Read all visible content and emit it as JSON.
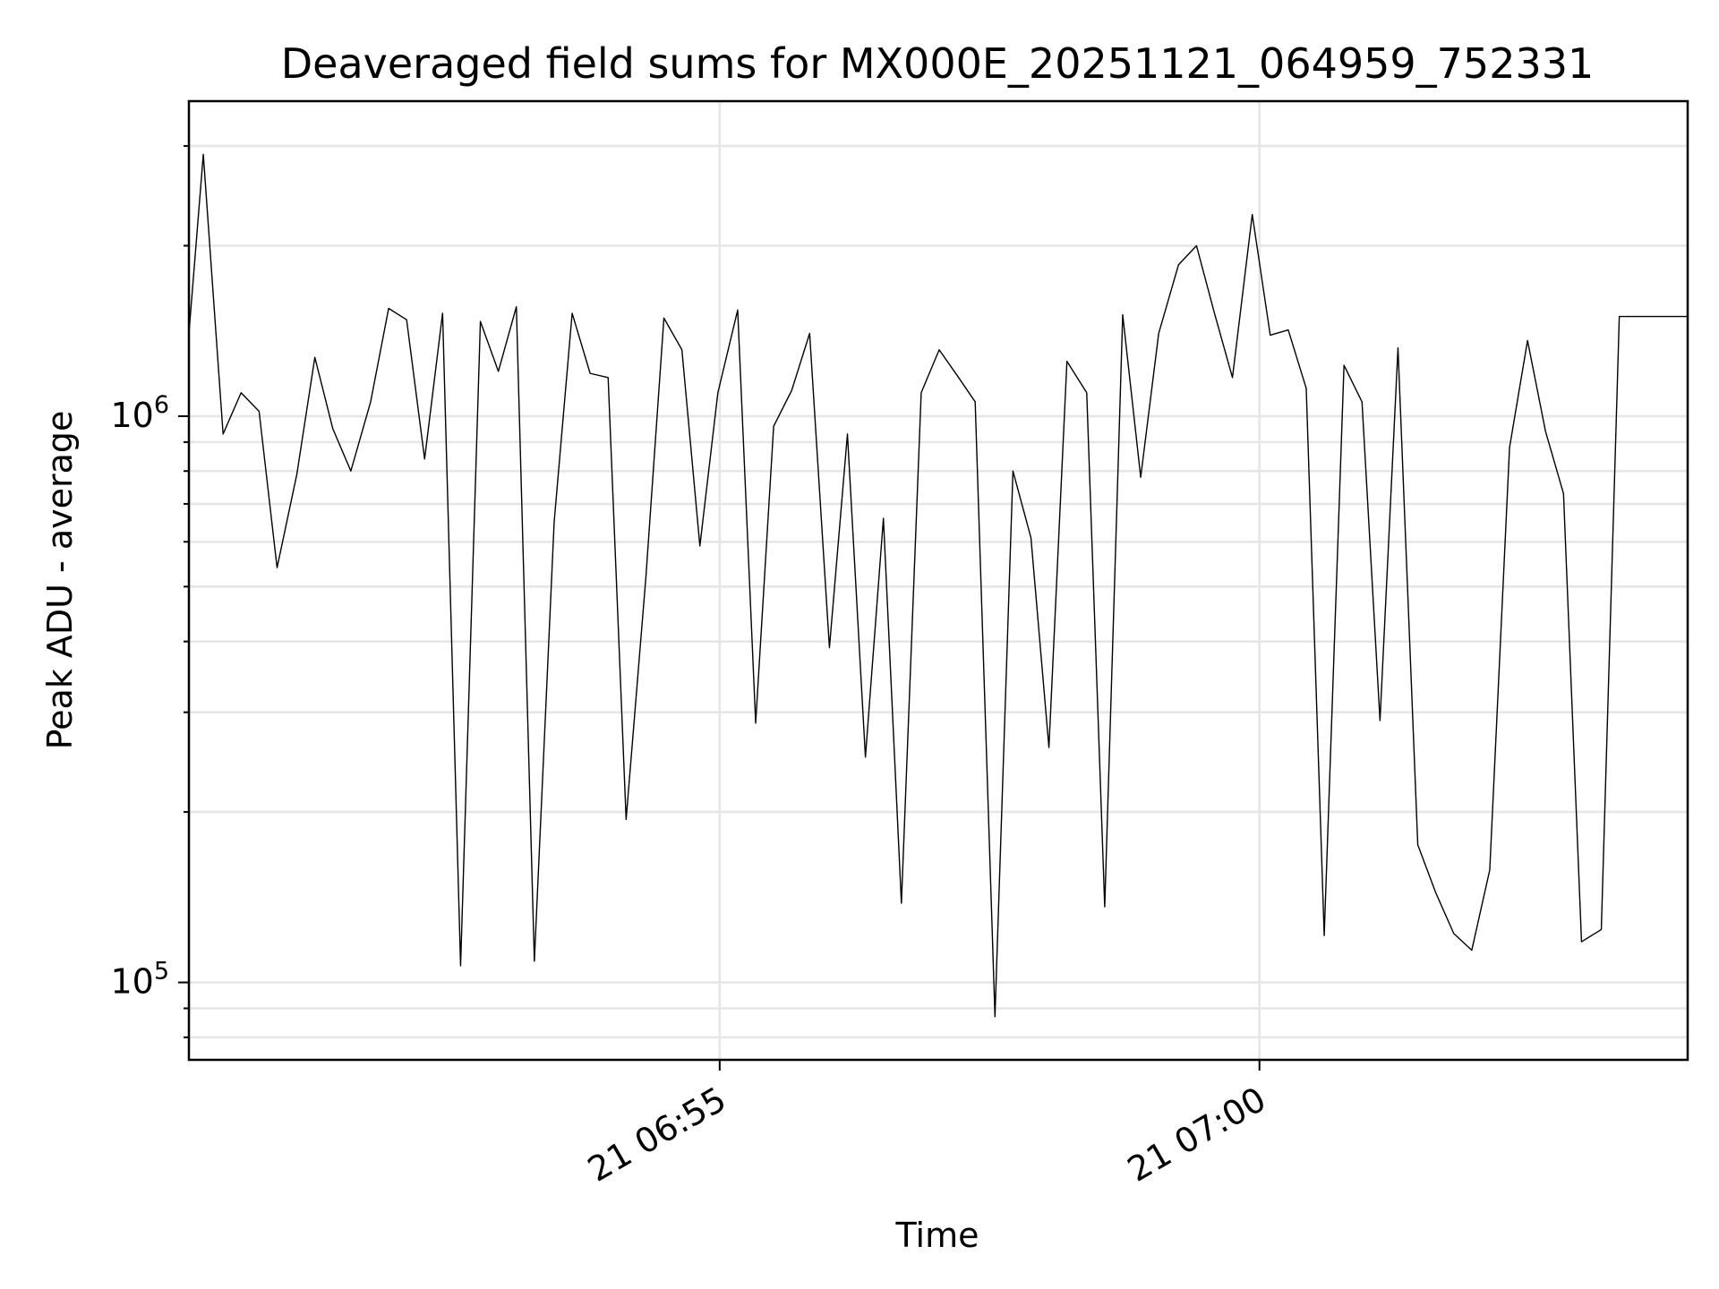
{
  "chart_data": {
    "type": "line",
    "title": "Deaveraged field sums for MX000E_20251121_064959_752331",
    "xlabel": "Time",
    "ylabel": "Peak ADU - average",
    "y_scale": "log",
    "ylim": [
      73000,
      3600000
    ],
    "xlim": [
      "2025-11-21 06:50:05",
      "2025-11-21 07:03:58"
    ],
    "grid": true,
    "x_ticks": [
      {
        "value": "2025-11-21 06:55:00",
        "label": "21 06:55"
      },
      {
        "value": "2025-11-21 07:00:00",
        "label": "21 07:00"
      }
    ],
    "y_ticks": [
      {
        "value": 100000,
        "base": "10",
        "exp": "5"
      },
      {
        "value": 1000000,
        "base": "10",
        "exp": "6"
      }
    ],
    "series": [
      {
        "color": "#000000",
        "x": [
          "2025-11-21 06:50:05",
          "2025-11-21 06:50:13",
          "2025-11-21 06:50:24",
          "2025-11-21 06:50:34",
          "2025-11-21 06:50:44",
          "2025-11-21 06:50:54",
          "2025-11-21 06:51:05",
          "2025-11-21 06:51:15",
          "2025-11-21 06:51:25",
          "2025-11-21 06:51:35",
          "2025-11-21 06:51:46",
          "2025-11-21 06:51:56",
          "2025-11-21 06:52:06",
          "2025-11-21 06:52:16",
          "2025-11-21 06:52:26",
          "2025-11-21 06:52:36",
          "2025-11-21 06:52:47",
          "2025-11-21 06:52:57",
          "2025-11-21 06:53:07",
          "2025-11-21 06:53:17",
          "2025-11-21 06:53:28",
          "2025-11-21 06:53:38",
          "2025-11-21 06:53:48",
          "2025-11-21 06:53:58",
          "2025-11-21 06:54:08",
          "2025-11-21 06:54:19",
          "2025-11-21 06:54:29",
          "2025-11-21 06:54:39",
          "2025-11-21 06:54:49",
          "2025-11-21 06:54:59",
          "2025-11-21 06:55:10",
          "2025-11-21 06:55:20",
          "2025-11-21 06:55:30",
          "2025-11-21 06:55:40",
          "2025-11-21 06:55:50",
          "2025-11-21 06:56:01",
          "2025-11-21 06:56:11",
          "2025-11-21 06:56:21",
          "2025-11-21 06:56:31",
          "2025-11-21 06:56:41",
          "2025-11-21 06:56:52",
          "2025-11-21 06:57:02",
          "2025-11-21 06:57:12",
          "2025-11-21 06:57:22",
          "2025-11-21 06:57:33",
          "2025-11-21 06:57:43",
          "2025-11-21 06:57:53",
          "2025-11-21 06:58:03",
          "2025-11-21 06:58:13",
          "2025-11-21 06:58:24",
          "2025-11-21 06:58:34",
          "2025-11-21 06:58:44",
          "2025-11-21 06:58:54",
          "2025-11-21 06:59:04",
          "2025-11-21 06:59:15",
          "2025-11-21 06:59:25",
          "2025-11-21 06:59:35",
          "2025-11-21 06:59:45",
          "2025-11-21 06:59:56",
          "2025-11-21 07:00:06",
          "2025-11-21 07:00:16",
          "2025-11-21 07:00:26",
          "2025-11-21 07:00:36",
          "2025-11-21 07:00:47",
          "2025-11-21 07:00:57",
          "2025-11-21 07:01:07",
          "2025-11-21 07:01:17",
          "2025-11-21 07:01:28",
          "2025-11-21 07:01:38",
          "2025-11-21 07:01:48",
          "2025-11-21 07:01:58",
          "2025-11-21 07:02:08",
          "2025-11-21 07:02:19",
          "2025-11-21 07:02:29",
          "2025-11-21 07:02:39",
          "2025-11-21 07:02:49",
          "2025-11-21 07:02:59",
          "2025-11-21 07:03:10",
          "2025-11-21 07:03:20",
          "2025-11-21 07:03:58"
        ],
        "values": [
          1400000,
          2900000,
          930000,
          1100000,
          1020000,
          540000,
          790000,
          1270000,
          950000,
          800000,
          1060000,
          1550000,
          1480000,
          840000,
          1520000,
          107000,
          1470000,
          1200000,
          1560000,
          109000,
          650000,
          1520000,
          1190000,
          1170000,
          194000,
          520000,
          1490000,
          1310000,
          590000,
          1100000,
          1540000,
          287000,
          960000,
          1110000,
          1400000,
          390000,
          930000,
          250000,
          660000,
          138000,
          1100000,
          1310000,
          1180000,
          1060000,
          87000,
          800000,
          610000,
          260000,
          1250000,
          1100000,
          136000,
          1510000,
          780000,
          1400000,
          1850000,
          2000000,
          1520000,
          1170000,
          2270000,
          1390000,
          1420000,
          1120000,
          121000,
          1230000,
          1060000,
          290000,
          1320000,
          175000,
          144000,
          122000,
          114000,
          158000,
          880000,
          1360000,
          940000,
          730000,
          118000,
          124000,
          1500000,
          1500000
        ]
      }
    ]
  }
}
